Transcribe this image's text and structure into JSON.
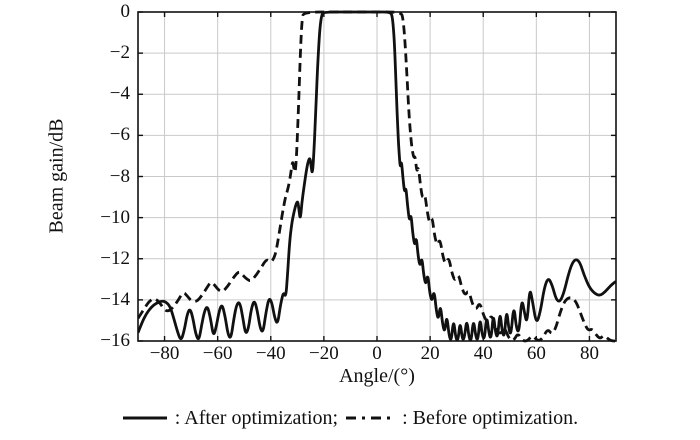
{
  "figure": {
    "legend": {
      "after_label": ": After optimization;",
      "before_label": ": Before optimization."
    }
  },
  "chart_data": {
    "type": "line",
    "title": "",
    "xlabel": "Angle/(°)",
    "ylabel": "Beam gain/dB",
    "xlim": [
      -90,
      90
    ],
    "ylim": [
      -16,
      0
    ],
    "x_ticks": [
      -80,
      -60,
      -40,
      -20,
      0,
      20,
      40,
      60,
      80
    ],
    "y_ticks": [
      0,
      -2,
      -4,
      -6,
      -8,
      -10,
      -12,
      -14,
      -16
    ],
    "grid": true,
    "legend_position": "bottom",
    "line_color": "#111111",
    "grid_color": "#c9c9c9",
    "series": [
      {
        "name": "After optimization",
        "style": "solid",
        "points": [
          [
            -90,
            -15.6
          ],
          [
            -88.5,
            -15.1
          ],
          [
            -87,
            -14.7
          ],
          [
            -85,
            -14.35
          ],
          [
            -83,
            -14.15
          ],
          [
            -81,
            -14.05
          ],
          [
            -79.5,
            -14.1
          ],
          [
            -78,
            -14.3
          ],
          [
            -76.5,
            -14.9
          ],
          [
            -75,
            -15.6
          ],
          [
            -73.8,
            -16
          ],
          [
            -72.6,
            -15.5
          ],
          [
            -71.5,
            -14.7
          ],
          [
            -70.4,
            -14.4
          ],
          [
            -69.3,
            -14.9
          ],
          [
            -68.2,
            -15.7
          ],
          [
            -67.1,
            -16
          ],
          [
            -66,
            -15.2
          ],
          [
            -64.9,
            -14.5
          ],
          [
            -63.8,
            -14.3
          ],
          [
            -62.7,
            -14.9
          ],
          [
            -61.6,
            -15.8
          ],
          [
            -60.5,
            -15.3
          ],
          [
            -59.4,
            -14.5
          ],
          [
            -58.3,
            -14.2
          ],
          [
            -57.2,
            -14.8
          ],
          [
            -56.1,
            -15.7
          ],
          [
            -55,
            -15.9
          ],
          [
            -53.9,
            -14.9
          ],
          [
            -52.8,
            -14.2
          ],
          [
            -51.7,
            -14.1
          ],
          [
            -50.6,
            -14.8
          ],
          [
            -49.5,
            -15.7
          ],
          [
            -48.4,
            -15.4
          ],
          [
            -47.3,
            -14.4
          ],
          [
            -46.2,
            -14.0
          ],
          [
            -45.1,
            -14.5
          ],
          [
            -44,
            -15.4
          ],
          [
            -42.9,
            -15.6
          ],
          [
            -41.8,
            -14.6
          ],
          [
            -40.7,
            -13.9
          ],
          [
            -39.6,
            -14.1
          ],
          [
            -38.5,
            -14.9
          ],
          [
            -37.4,
            -15.2
          ],
          [
            -36.3,
            -14.2
          ],
          [
            -35.2,
            -13.6
          ],
          [
            -34.3,
            -13.9
          ],
          [
            -33.6,
            -12.6
          ],
          [
            -32.8,
            -11.0
          ],
          [
            -32,
            -10.2
          ],
          [
            -31.2,
            -9.7
          ],
          [
            -30.4,
            -9.3
          ],
          [
            -29.8,
            -9.2
          ],
          [
            -29.3,
            -9.7
          ],
          [
            -28.9,
            -10.1
          ],
          [
            -28.3,
            -9.3
          ],
          [
            -27.5,
            -8.5
          ],
          [
            -26.6,
            -7.7
          ],
          [
            -25.8,
            -7.2
          ],
          [
            -25.2,
            -7.1
          ],
          [
            -24.8,
            -7.5
          ],
          [
            -24.4,
            -7.9
          ],
          [
            -23.9,
            -7.2
          ],
          [
            -23.2,
            -5.2
          ],
          [
            -22.4,
            -2.7
          ],
          [
            -21.6,
            -0.9
          ],
          [
            -20.9,
            -0.15
          ],
          [
            -20,
            0
          ],
          [
            -10,
            0
          ],
          [
            0,
            0
          ],
          [
            5,
            0
          ],
          [
            5.8,
            -0.2
          ],
          [
            6.5,
            -1.3
          ],
          [
            7.2,
            -3.6
          ],
          [
            7.9,
            -5.9
          ],
          [
            8.4,
            -7.0
          ],
          [
            8.8,
            -7.6
          ],
          [
            9.2,
            -7.2
          ],
          [
            9.8,
            -8.1
          ],
          [
            10.4,
            -8.8
          ],
          [
            10.9,
            -8.5
          ],
          [
            11.5,
            -9.4
          ],
          [
            12.2,
            -10.2
          ],
          [
            12.8,
            -9.8
          ],
          [
            13.5,
            -10.8
          ],
          [
            14.2,
            -11.4
          ],
          [
            14.8,
            -10.9
          ],
          [
            15.5,
            -11.9
          ],
          [
            16.2,
            -12.4
          ],
          [
            16.9,
            -11.9
          ],
          [
            17.6,
            -12.8
          ],
          [
            18.4,
            -13.3
          ],
          [
            19.1,
            -12.7
          ],
          [
            19.9,
            -13.7
          ],
          [
            20.7,
            -14.1
          ],
          [
            21.5,
            -13.5
          ],
          [
            22.3,
            -14.5
          ],
          [
            23.1,
            -15.0
          ],
          [
            23.9,
            -14.2
          ],
          [
            24.7,
            -15.2
          ],
          [
            25.5,
            -15.6
          ],
          [
            26.3,
            -14.7
          ],
          [
            27.2,
            -15.8
          ],
          [
            28,
            -16
          ],
          [
            28.8,
            -14.9
          ],
          [
            29.7,
            -15.9
          ],
          [
            30.5,
            -16
          ],
          [
            31.3,
            -15.0
          ],
          [
            32.2,
            -16
          ],
          [
            33,
            -15.8
          ],
          [
            33.8,
            -14.9
          ],
          [
            34.7,
            -15.9
          ],
          [
            35.5,
            -16
          ],
          [
            36.3,
            -14.9
          ],
          [
            37.2,
            -15.8
          ],
          [
            38,
            -16
          ],
          [
            38.8,
            -14.8
          ],
          [
            39.7,
            -15.8
          ],
          [
            40.5,
            -15.9
          ],
          [
            41.3,
            -14.7
          ],
          [
            42.2,
            -15.7
          ],
          [
            43,
            -15.9
          ],
          [
            43.8,
            -14.6
          ],
          [
            44.7,
            -15.7
          ],
          [
            45.5,
            -15.8
          ],
          [
            46.3,
            -14.5
          ],
          [
            47.2,
            -15.6
          ],
          [
            48,
            -15.8
          ],
          [
            48.8,
            -14.4
          ],
          [
            49.7,
            -15.5
          ],
          [
            50.5,
            -15.7
          ],
          [
            51.5,
            -14.2
          ],
          [
            52.5,
            -15.4
          ],
          [
            53.5,
            -15.6
          ],
          [
            54.5,
            -13.9
          ],
          [
            55.5,
            -14.6
          ],
          [
            56.5,
            -15.2
          ],
          [
            57.5,
            -13.4
          ],
          [
            58.5,
            -14.0
          ],
          [
            60,
            -15.2
          ],
          [
            61.5,
            -14.6
          ],
          [
            63,
            -13.4
          ],
          [
            64.5,
            -12.9
          ],
          [
            66,
            -13.3
          ],
          [
            67.5,
            -14.0
          ],
          [
            69,
            -14.1
          ],
          [
            70.5,
            -13.6
          ],
          [
            72,
            -12.8
          ],
          [
            73.5,
            -12.2
          ],
          [
            75,
            -12.0
          ],
          [
            76.5,
            -12.2
          ],
          [
            78,
            -12.8
          ],
          [
            80,
            -13.4
          ],
          [
            82,
            -13.7
          ],
          [
            84,
            -13.8
          ],
          [
            86,
            -13.6
          ],
          [
            88,
            -13.3
          ],
          [
            90,
            -13.1
          ]
        ]
      },
      {
        "name": "Before optimization",
        "style": "dashed",
        "points": [
          [
            -90,
            -14.9
          ],
          [
            -88,
            -14.5
          ],
          [
            -86,
            -14.1
          ],
          [
            -84,
            -13.9
          ],
          [
            -82,
            -14.1
          ],
          [
            -80,
            -14.5
          ],
          [
            -78.5,
            -14.55
          ],
          [
            -77,
            -14.4
          ],
          [
            -75,
            -14.05
          ],
          [
            -73,
            -13.6
          ],
          [
            -71.5,
            -13.8
          ],
          [
            -70,
            -14.05
          ],
          [
            -68,
            -14.1
          ],
          [
            -66,
            -13.8
          ],
          [
            -64,
            -13.4
          ],
          [
            -62.5,
            -13.1
          ],
          [
            -61,
            -13.3
          ],
          [
            -59.5,
            -13.55
          ],
          [
            -58,
            -13.6
          ],
          [
            -56,
            -13.3
          ],
          [
            -54,
            -12.9
          ],
          [
            -52,
            -12.6
          ],
          [
            -50.5,
            -12.8
          ],
          [
            -49,
            -13.0
          ],
          [
            -47.5,
            -13.1
          ],
          [
            -45.5,
            -12.8
          ],
          [
            -43.5,
            -12.4
          ],
          [
            -41.5,
            -12.0
          ],
          [
            -40,
            -12.2
          ],
          [
            -38.5,
            -11.9
          ],
          [
            -37.5,
            -11.3
          ],
          [
            -36.5,
            -10.5
          ],
          [
            -35.5,
            -9.7
          ],
          [
            -34.5,
            -9.0
          ],
          [
            -33.5,
            -8.6
          ],
          [
            -32.5,
            -7.9
          ],
          [
            -31.8,
            -7.2
          ],
          [
            -31.3,
            -7.6
          ],
          [
            -30.8,
            -7.9
          ],
          [
            -30.2,
            -6.8
          ],
          [
            -29.5,
            -4.4
          ],
          [
            -28.8,
            -1.8
          ],
          [
            -28.2,
            -0.3
          ],
          [
            -27.5,
            0
          ],
          [
            -15,
            0
          ],
          [
            0,
            0
          ],
          [
            9,
            0
          ],
          [
            9.8,
            -0.3
          ],
          [
            10.6,
            -1.5
          ],
          [
            11.4,
            -3.4
          ],
          [
            12.2,
            -5.3
          ],
          [
            13,
            -6.5
          ],
          [
            13.8,
            -7.1
          ],
          [
            14.4,
            -7.0
          ],
          [
            15,
            -7.8
          ],
          [
            15.6,
            -7.5
          ],
          [
            16.4,
            -8.5
          ],
          [
            17.2,
            -9.1
          ],
          [
            18,
            -8.8
          ],
          [
            18.9,
            -9.7
          ],
          [
            19.8,
            -10.3
          ],
          [
            20.7,
            -9.9
          ],
          [
            21.7,
            -10.9
          ],
          [
            22.7,
            -11.4
          ],
          [
            23.7,
            -11.0
          ],
          [
            24.8,
            -11.9
          ],
          [
            25.9,
            -12.3
          ],
          [
            27,
            -11.9
          ],
          [
            28.2,
            -12.7
          ],
          [
            29.4,
            -13.1
          ],
          [
            30.6,
            -12.7
          ],
          [
            31.9,
            -13.4
          ],
          [
            33.2,
            -13.8
          ],
          [
            34.5,
            -13.5
          ],
          [
            35.9,
            -14.2
          ],
          [
            37.3,
            -14.5
          ],
          [
            38.7,
            -14.1
          ],
          [
            40.2,
            -14.8
          ],
          [
            41.7,
            -15.1
          ],
          [
            43.2,
            -14.7
          ],
          [
            44.8,
            -15.4
          ],
          [
            46.4,
            -15.7
          ],
          [
            48,
            -15.3
          ],
          [
            49.7,
            -15.9
          ],
          [
            51.4,
            -16
          ],
          [
            53.1,
            -15.6
          ],
          [
            54.9,
            -16
          ],
          [
            56.7,
            -16
          ],
          [
            58.5,
            -15.7
          ],
          [
            60.4,
            -16
          ],
          [
            62.3,
            -15.9
          ],
          [
            64.2,
            -15.4
          ],
          [
            66,
            -15.7
          ],
          [
            67.5,
            -15.3
          ],
          [
            69,
            -14.6
          ],
          [
            70.5,
            -14.1
          ],
          [
            72,
            -13.9
          ],
          [
            73.5,
            -13.9
          ],
          [
            75,
            -14.1
          ],
          [
            76.5,
            -14.6
          ],
          [
            78,
            -15.1
          ],
          [
            79.5,
            -15.5
          ],
          [
            81,
            -15.4
          ],
          [
            82.5,
            -15.7
          ],
          [
            84,
            -15.9
          ],
          [
            85.5,
            -15.7
          ],
          [
            87,
            -15.9
          ],
          [
            88.5,
            -16
          ],
          [
            90,
            -16
          ]
        ]
      }
    ]
  }
}
